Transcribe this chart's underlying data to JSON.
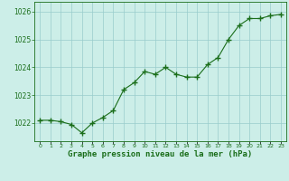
{
  "x": [
    0,
    1,
    2,
    3,
    4,
    5,
    6,
    7,
    8,
    9,
    10,
    11,
    12,
    13,
    14,
    15,
    16,
    17,
    18,
    19,
    20,
    21,
    22,
    23
  ],
  "y": [
    1022.1,
    1022.1,
    1022.05,
    1021.95,
    1021.65,
    1022.0,
    1022.2,
    1022.45,
    1023.2,
    1023.45,
    1023.85,
    1023.75,
    1024.0,
    1023.75,
    1023.65,
    1023.65,
    1024.1,
    1024.35,
    1025.0,
    1025.5,
    1025.75,
    1025.75,
    1025.85,
    1025.9
  ],
  "line_color": "#1a6e1a",
  "marker": "+",
  "marker_size": 4,
  "bg_color": "#cceee8",
  "grid_color": "#99cccc",
  "ylabel_ticks": [
    1022,
    1023,
    1024,
    1025,
    1026
  ],
  "xlabel_label": "Graphe pression niveau de la mer (hPa)",
  "xlabel_color": "#1a6e1a",
  "ylim": [
    1021.35,
    1026.35
  ],
  "xlim": [
    -0.5,
    23.5
  ],
  "xtick_labels": [
    "0",
    "1",
    "2",
    "3",
    "4",
    "5",
    "6",
    "7",
    "8",
    "9",
    "10",
    "11",
    "12",
    "13",
    "14",
    "15",
    "16",
    "17",
    "18",
    "19",
    "20",
    "21",
    "22",
    "23"
  ]
}
